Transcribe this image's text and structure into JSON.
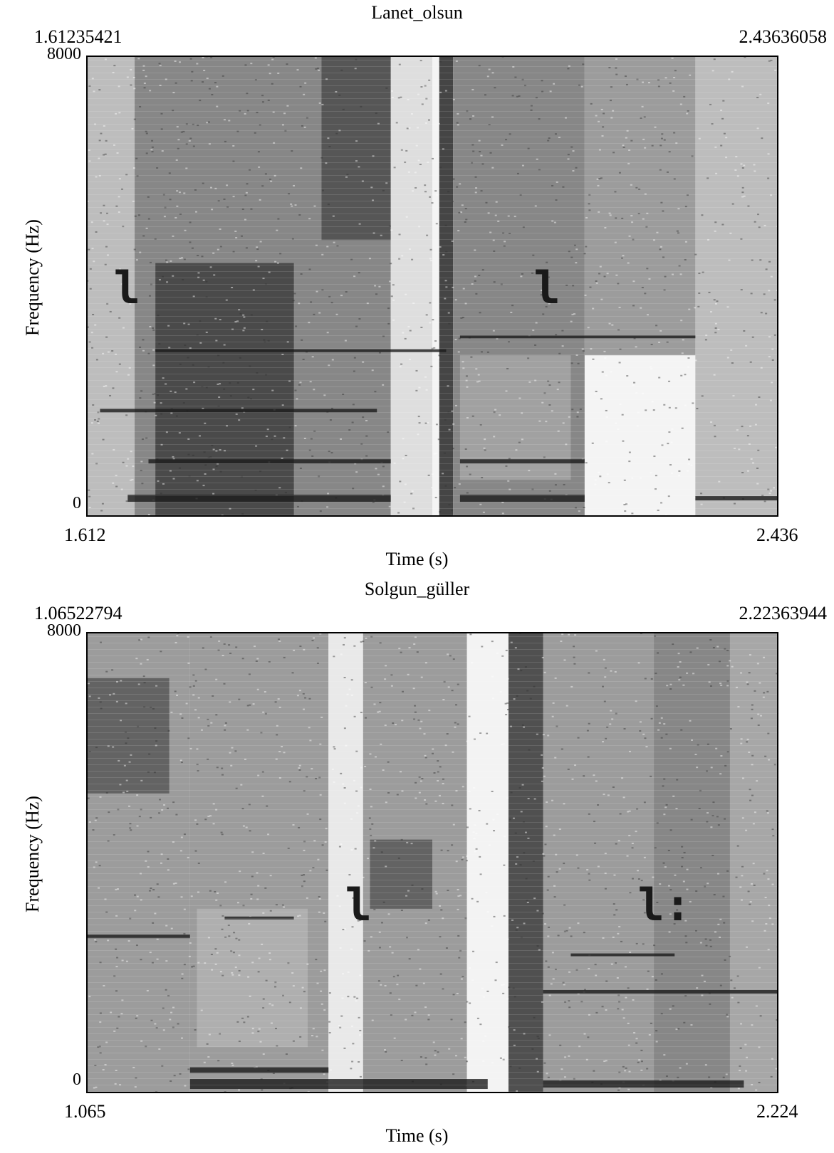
{
  "chart_data": [
    {
      "type": "heatmap",
      "title": "Lanet_olsun",
      "time_start": "1.61235421",
      "time_end": "2.43636058",
      "xlabel": "Time (s)",
      "ylabel": "Frequency (Hz)",
      "xlim": [
        1.612,
        2.436
      ],
      "ylim": [
        0,
        8000
      ],
      "x_ticks": [
        "1.612",
        "2.436"
      ],
      "y_ticks": [
        "0",
        "8000"
      ],
      "colormap": "grayscale",
      "segment_labels": [
        {
          "text": "l",
          "time": 1.66,
          "frequency": 3900
        },
        {
          "text": "l",
          "time": 2.16,
          "frequency": 3900
        }
      ]
    },
    {
      "type": "heatmap",
      "title": "Solgun_güller",
      "time_start": "1.06522794",
      "time_end": "2.22363944",
      "xlabel": "Time (s)",
      "ylabel": "Frequency (Hz)",
      "xlim": [
        1.065,
        2.224
      ],
      "ylim": [
        0,
        8000
      ],
      "x_ticks": [
        "1.065",
        "2.224"
      ],
      "y_ticks": [
        "0",
        "8000"
      ],
      "colormap": "grayscale",
      "segment_labels": [
        {
          "text": "l",
          "time": 1.52,
          "frequency": 3200
        },
        {
          "text": "l:",
          "time": 2.01,
          "frequency": 3200
        }
      ]
    }
  ]
}
